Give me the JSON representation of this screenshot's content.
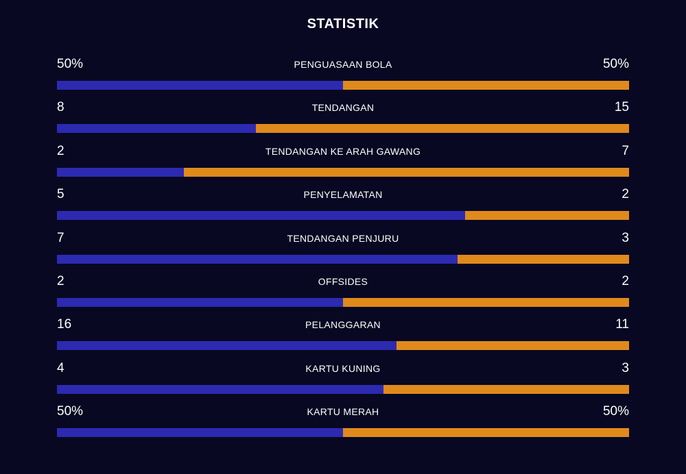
{
  "title": "STATISTIK",
  "colors": {
    "background": "#090822",
    "home": "#2c2ab1",
    "away": "#e08a1c"
  },
  "stats": [
    {
      "label": "PENGUASAAN BOLA",
      "home": "50%",
      "away": "50%",
      "home_share": 0.5
    },
    {
      "label": "TENDANGAN",
      "home": "8",
      "away": "15",
      "home_share": 0.348
    },
    {
      "label": "TENDANGAN KE ARAH GAWANG",
      "home": "2",
      "away": "7",
      "home_share": 0.222
    },
    {
      "label": "PENYELAMATAN",
      "home": "5",
      "away": "2",
      "home_share": 0.714
    },
    {
      "label": "TENDANGAN PENJURU",
      "home": "7",
      "away": "3",
      "home_share": 0.7
    },
    {
      "label": "OFFSIDES",
      "home": "2",
      "away": "2",
      "home_share": 0.5
    },
    {
      "label": "PELANGGARAN",
      "home": "16",
      "away": "11",
      "home_share": 0.593
    },
    {
      "label": "KARTU KUNING",
      "home": "4",
      "away": "3",
      "home_share": 0.571
    },
    {
      "label": "KARTU MERAH",
      "home": "50%",
      "away": "50%",
      "home_share": 0.5
    }
  ]
}
